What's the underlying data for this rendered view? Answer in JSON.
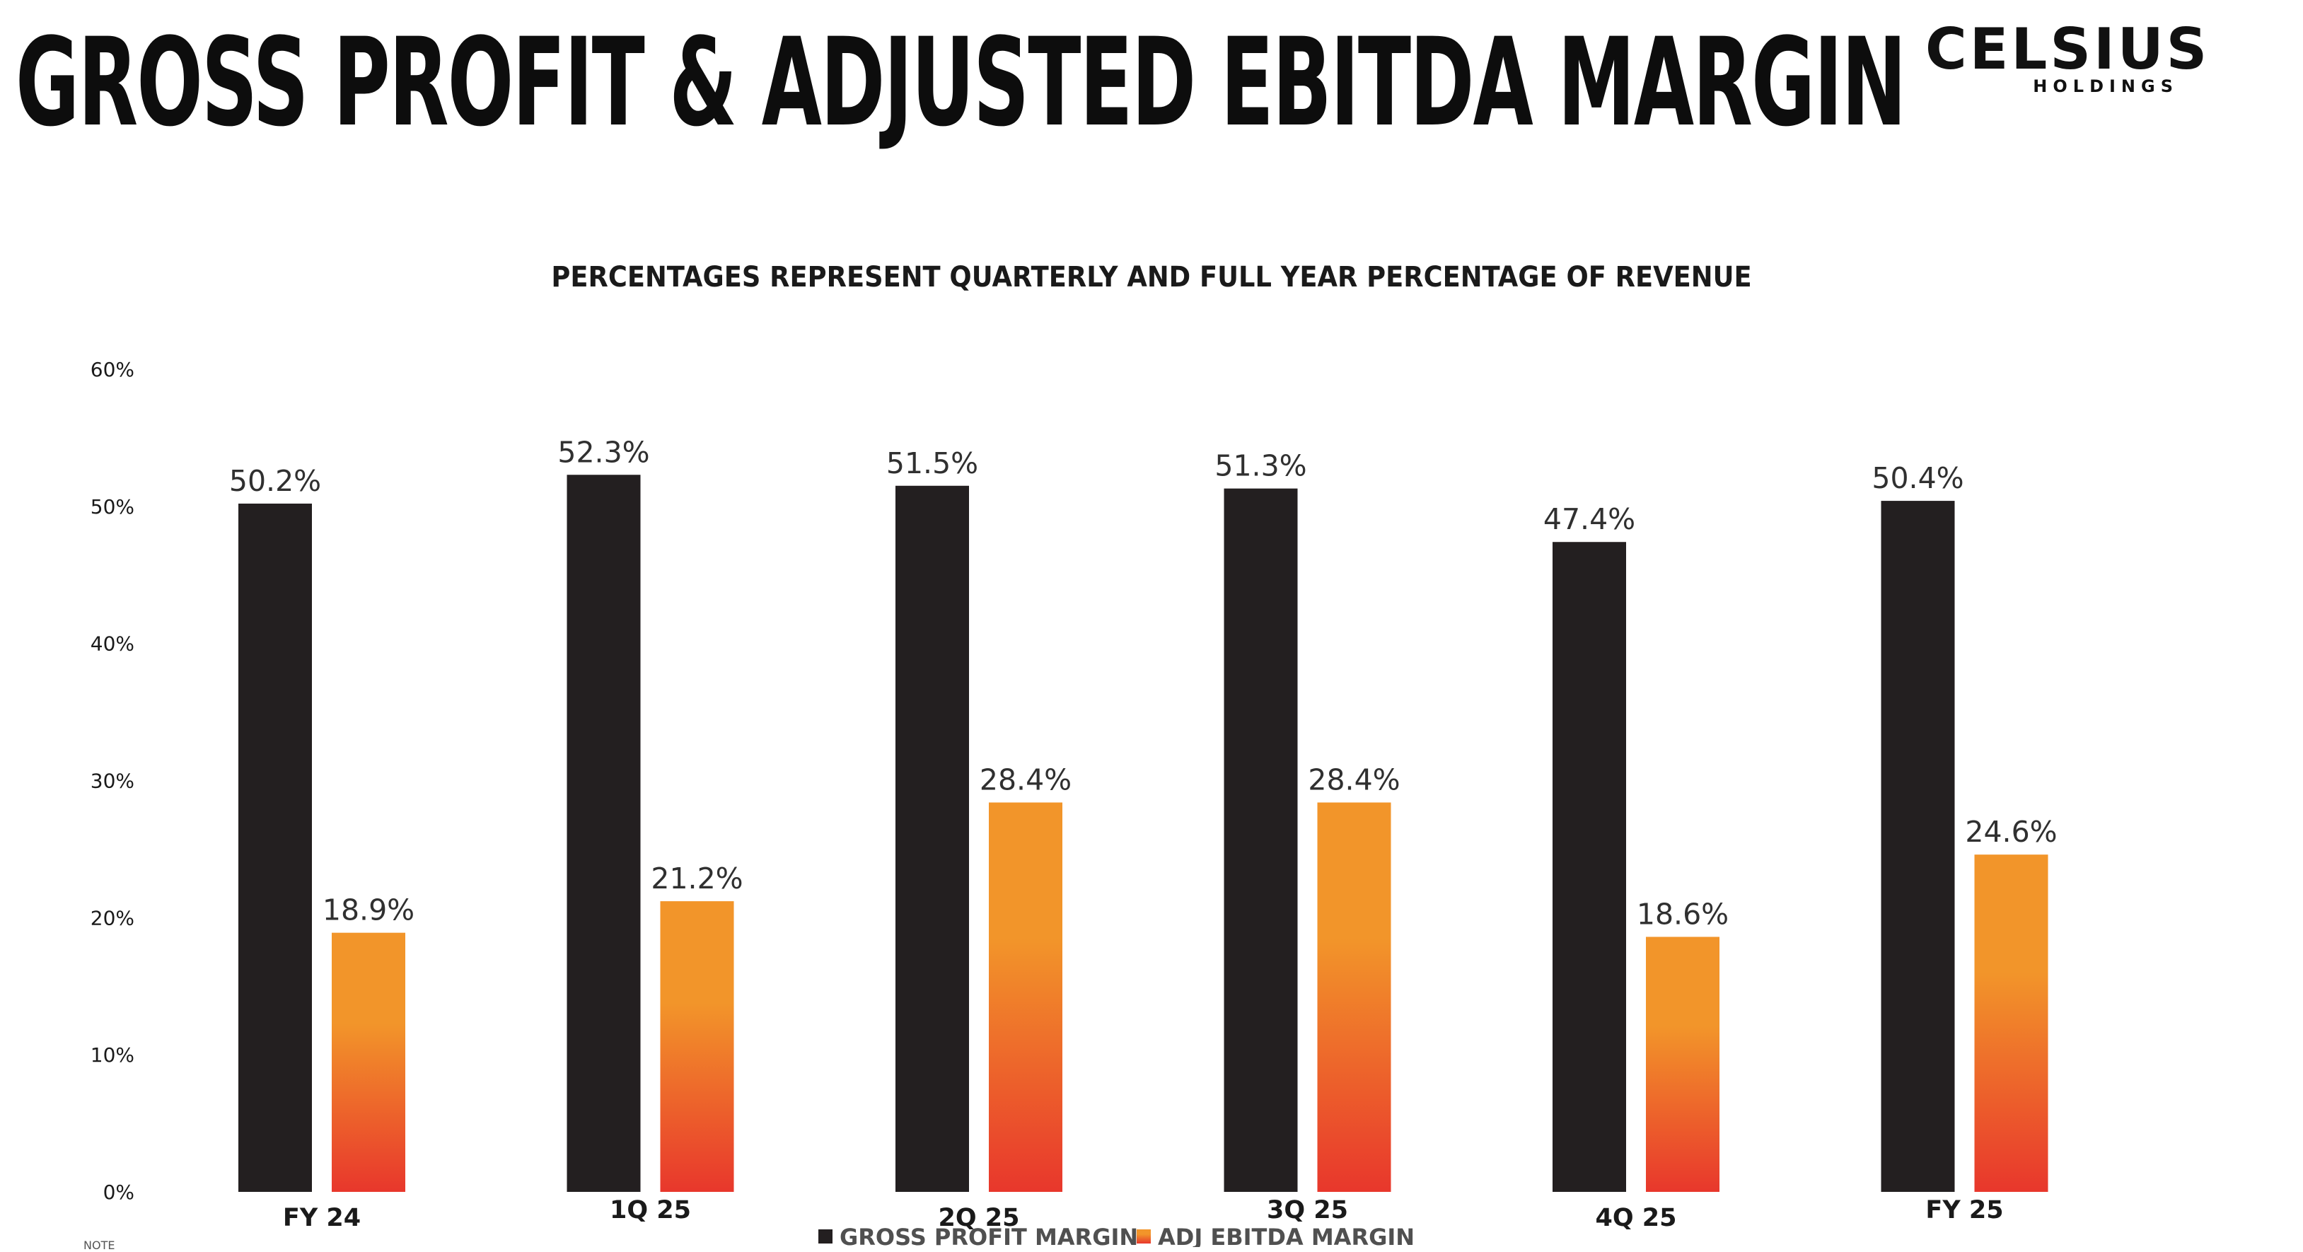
{
  "slide": {
    "title": "GROSS PROFIT & ADJUSTED EBITDA MARGIN",
    "logo_main": "CELSIUS",
    "logo_sub": "HOLDINGS",
    "note": "NOTE"
  },
  "colors": {
    "gross": "#231f20",
    "ebitda_top": "#f2952a",
    "ebitda_bottom": "#e8372c"
  },
  "chart_data": {
    "type": "bar",
    "title": "PERCENTAGES REPRESENT QUARTERLY AND FULL YEAR PERCENTAGE OF REVENUE",
    "xlabel": "",
    "ylabel": "",
    "ylim": [
      0,
      60
    ],
    "yticks": [
      "0%",
      "10%",
      "20%",
      "30%",
      "40%",
      "50%",
      "60%"
    ],
    "categories": [
      "FY 24",
      "1Q 25",
      "2Q 25",
      "3Q 25",
      "4Q 25",
      "FY 25"
    ],
    "series": [
      {
        "name": "GROSS PROFIT MARGIN",
        "values": [
          50.2,
          52.3,
          51.5,
          51.3,
          47.4,
          50.4
        ],
        "labels": [
          "50.2%",
          "52.3%",
          "51.5%",
          "51.3%",
          "47.4%",
          "50.4%"
        ]
      },
      {
        "name": "ADJ EBITDA MARGIN",
        "values": [
          18.9,
          21.2,
          28.4,
          28.4,
          18.6,
          24.6
        ],
        "labels": [
          "18.9%",
          "21.2%",
          "28.4%",
          "28.4%",
          "18.6%",
          "24.6%"
        ]
      }
    ],
    "legend": "bottom-center",
    "grid": false
  }
}
